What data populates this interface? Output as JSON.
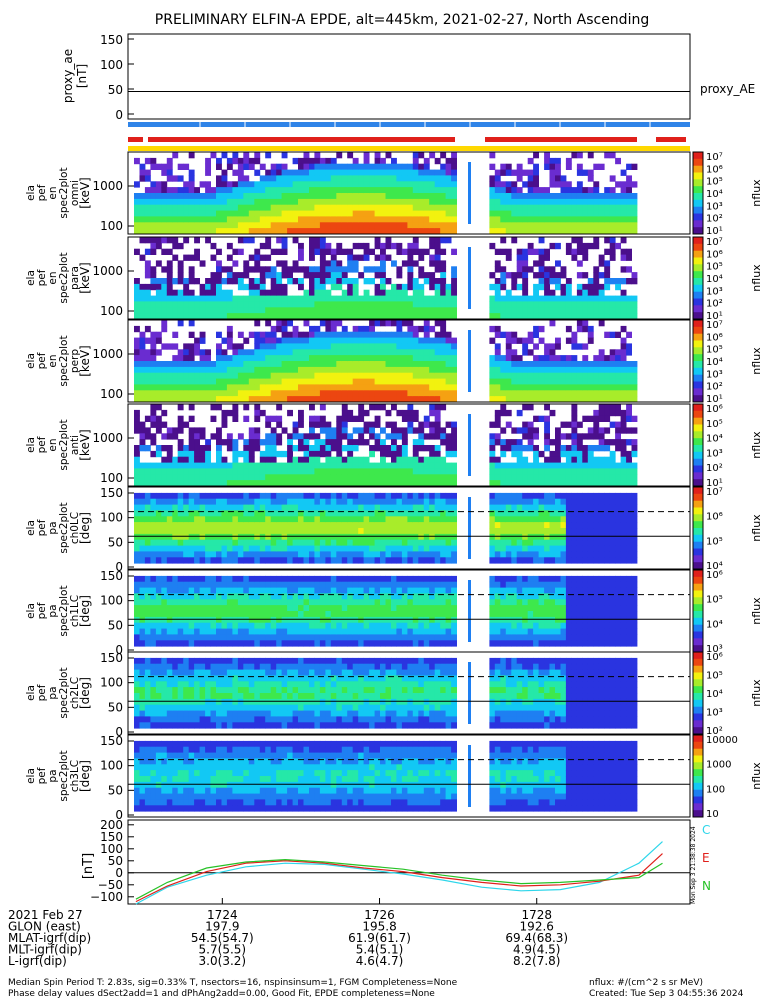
{
  "title": "PRELIMINARY ELFIN-A EPDE, alt=445km, 2021-02-27, North Ascending",
  "colors": {
    "blue_bar": "#2f84e8",
    "red_bar": "#e0201b",
    "yellow_bar": "#ffd800",
    "cmap": [
      "#ffffff",
      "#4b0f8c",
      "#6a2cd0",
      "#2a34e0",
      "#1e7ff2",
      "#12c8f4",
      "#25e8a8",
      "#3ee84c",
      "#a8ec2a",
      "#f2f20f",
      "#f5a112",
      "#ec4611",
      "#e0201b"
    ]
  },
  "panels": {
    "ae": {
      "ylabel": [
        "proxy_ae",
        "[nT]"
      ],
      "ticks": [
        "150",
        "100",
        "50",
        "0"
      ],
      "legend": "proxy_AE"
    },
    "spec": [
      {
        "ylabel": [
          "ela",
          "pef",
          "en",
          "spec2plot",
          "omni",
          "[keV]"
        ],
        "ticks": [
          "1000",
          "100"
        ],
        "cbar": [
          "10⁷",
          "10⁶",
          "10⁵",
          "10⁴",
          "10³",
          "10²",
          "10¹"
        ],
        "unit": "nflux"
      },
      {
        "ylabel": [
          "ela",
          "pef",
          "en",
          "spec2plot",
          "para",
          "[keV]"
        ],
        "ticks": [
          "1000",
          "100"
        ],
        "cbar": [
          "10⁷",
          "10⁶",
          "10⁵",
          "10⁴",
          "10³",
          "10²",
          "10¹"
        ],
        "unit": "nflux"
      },
      {
        "ylabel": [
          "ela",
          "pef",
          "en",
          "spec2plot",
          "perp",
          "[keV]"
        ],
        "ticks": [
          "1000",
          "100"
        ],
        "cbar": [
          "10⁷",
          "10⁶",
          "10⁵",
          "10⁴",
          "10³",
          "10²",
          "10¹"
        ],
        "unit": "nflux"
      },
      {
        "ylabel": [
          "ela",
          "pef",
          "en",
          "spec2plot",
          "anti",
          "[keV]"
        ],
        "ticks": [
          "1000",
          "100"
        ],
        "cbar": [
          "10⁶",
          "10⁵",
          "10⁴",
          "10³",
          "10²",
          "10¹"
        ],
        "unit": "nflux"
      },
      {
        "ylabel": [
          "ela",
          "pef",
          "pa",
          "spec2plot",
          "ch0LC",
          "[deg]"
        ],
        "ticks": [
          "150",
          "100",
          "50",
          "0"
        ],
        "cbar": [
          "10⁷",
          "10⁶",
          "10⁵",
          "10⁴"
        ],
        "unit": "nflux"
      },
      {
        "ylabel": [
          "ela",
          "pef",
          "pa",
          "spec2plot",
          "ch1LC",
          "[deg]"
        ],
        "ticks": [
          "150",
          "100",
          "50",
          "0"
        ],
        "cbar": [
          "10⁶",
          "10⁵",
          "10⁴",
          "10³"
        ],
        "unit": "nflux"
      },
      {
        "ylabel": [
          "ela",
          "pef",
          "pa",
          "spec2plot",
          "ch2LC",
          "[deg]"
        ],
        "ticks": [
          "150",
          "100",
          "50",
          "0"
        ],
        "cbar": [
          "10⁶",
          "10⁵",
          "10⁴",
          "10³",
          "10²"
        ],
        "unit": "nflux"
      },
      {
        "ylabel": [
          "ela",
          "pef",
          "pa",
          "spec2plot",
          "ch3LC",
          "[deg]"
        ],
        "ticks": [
          "150",
          "100",
          "50",
          "0"
        ],
        "cbar": [
          "10000",
          "1000",
          "100",
          "10"
        ],
        "unit": "nflux"
      }
    ],
    "mag": {
      "ylabel": "[nT]",
      "ticks": [
        "200",
        "150",
        "100",
        "50",
        "0",
        "−50",
        "−100"
      ],
      "legend": [
        "C",
        "E",
        "N"
      ],
      "legend_colors": [
        "#2ed6ea",
        "#e0201b",
        "#27c227"
      ],
      "stamp": "Mon Sep 3 21:38:38 2024"
    }
  },
  "chart_data": {
    "type": "line",
    "title": "PRELIMINARY ELFIN-A EPDE, alt=445km, 2021-02-27, North Ascending",
    "x": [
      1722.9,
      1723.3,
      1723.8,
      1724.3,
      1724.8,
      1725.3,
      1725.8,
      1726.3,
      1726.8,
      1727.3,
      1727.8,
      1728.3,
      1728.8,
      1729.3,
      1729.6
    ],
    "series": [
      {
        "name": "C",
        "values": [
          -130,
          -60,
          -10,
          25,
          40,
          35,
          15,
          -5,
          -30,
          -60,
          -75,
          -70,
          -40,
          40,
          130
        ]
      },
      {
        "name": "E",
        "values": [
          -120,
          -55,
          5,
          40,
          50,
          40,
          20,
          5,
          -20,
          -40,
          -55,
          -50,
          -35,
          -10,
          80
        ]
      },
      {
        "name": "N",
        "values": [
          -110,
          -40,
          20,
          45,
          55,
          45,
          30,
          15,
          -10,
          -30,
          -45,
          -40,
          -30,
          -20,
          40
        ]
      }
    ],
    "proxy_ae": 45,
    "ylim": [
      -130,
      220
    ],
    "xlabel": "",
    "ylabel": "[nT]"
  },
  "axis": {
    "time_ticks": [
      "1724",
      "1726",
      "1728"
    ],
    "rows": [
      {
        "label": "2021 Feb 27",
        "vals": [
          "1724",
          "1726",
          "1728"
        ]
      },
      {
        "label": "GLON (east)",
        "vals": [
          "197.9",
          "195.8",
          "192.6"
        ]
      },
      {
        "label": "MLAT-igrf(dip)",
        "vals": [
          "54.5(54.7)",
          "61.9(61.7)",
          "69.4(68.3)"
        ]
      },
      {
        "label": "MLT-igrf(dip)",
        "vals": [
          "5.7(5.5)",
          "5.4(5.1)",
          "4.9(4.5)"
        ]
      },
      {
        "label": "L-igrf(dip)",
        "vals": [
          "3.0(3.2)",
          "4.6(4.7)",
          "8.2(7.8)"
        ]
      }
    ]
  },
  "footer": {
    "line1": "Median Spin Period T: 2.83s, sig=0.33% T, nsectors=16, nspinsinsum=1, FGM Completeness=None",
    "line2": "Phase delay values dSect2add=1 and dPhAng2add=0.00, Good Fit, EPDE completeness=None",
    "units": "nflux: #/(cm^2 s sr MeV)",
    "created": "Created: Tue Sep  3 04:55:36 2024"
  }
}
